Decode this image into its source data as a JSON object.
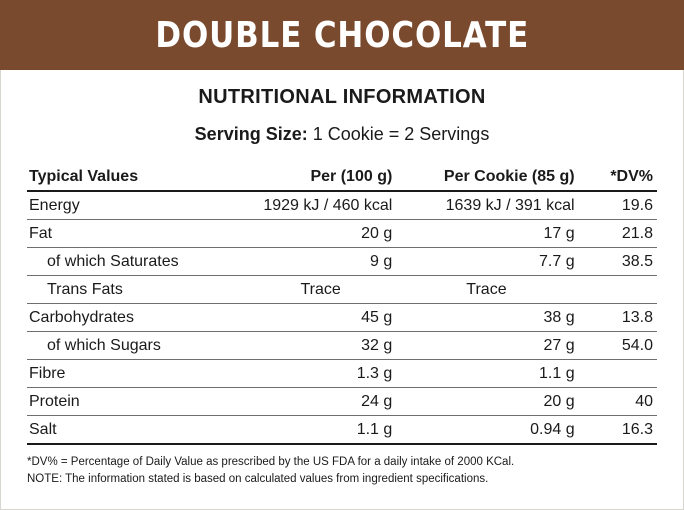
{
  "product": {
    "title": "DOUBLE CHOCOLATE",
    "brand_color": "#7a4a2e"
  },
  "panel": {
    "heading": "NUTRITIONAL INFORMATION",
    "serving_label": "Serving Size:",
    "serving_value": " 1 Cookie = 2 Servings"
  },
  "table": {
    "headers": {
      "name": "Typical Values",
      "per100": "Per (100 g)",
      "percookie": "Per Cookie (85 g)",
      "dv": "*DV%"
    },
    "rows": [
      {
        "name": "Energy",
        "per100": "1929 kJ / 460 kcal",
        "percookie": "1639 kJ / 391 kcal",
        "dv": "19.6"
      },
      {
        "name": "Fat",
        "per100": "20 g",
        "percookie": "17 g",
        "dv": "21.8"
      },
      {
        "name": "of which Saturates",
        "per100": "9 g",
        "percookie": "7.7 g",
        "dv": "38.5"
      },
      {
        "name": "Trans Fats",
        "per100": "Trace",
        "percookie": "Trace",
        "dv": ""
      },
      {
        "name": "Carbohydrates",
        "per100": "45 g",
        "percookie": "38 g",
        "dv": "13.8"
      },
      {
        "name": "of which Sugars",
        "per100": "32 g",
        "percookie": "27 g",
        "dv": "54.0"
      },
      {
        "name": "Fibre",
        "per100": "1.3 g",
        "percookie": "1.1 g",
        "dv": ""
      },
      {
        "name": "Protein",
        "per100": "24 g",
        "percookie": "20 g",
        "dv": "40"
      },
      {
        "name": "Salt",
        "per100": "1.1 g",
        "percookie": "0.94 g",
        "dv": "16.3"
      }
    ]
  },
  "footnotes": {
    "dv": "*DV% = Percentage of Daily Value as prescribed by the US FDA for a daily intake of 2000 KCal.",
    "note": "NOTE: The information stated is based on calculated values from ingredient specifications."
  }
}
